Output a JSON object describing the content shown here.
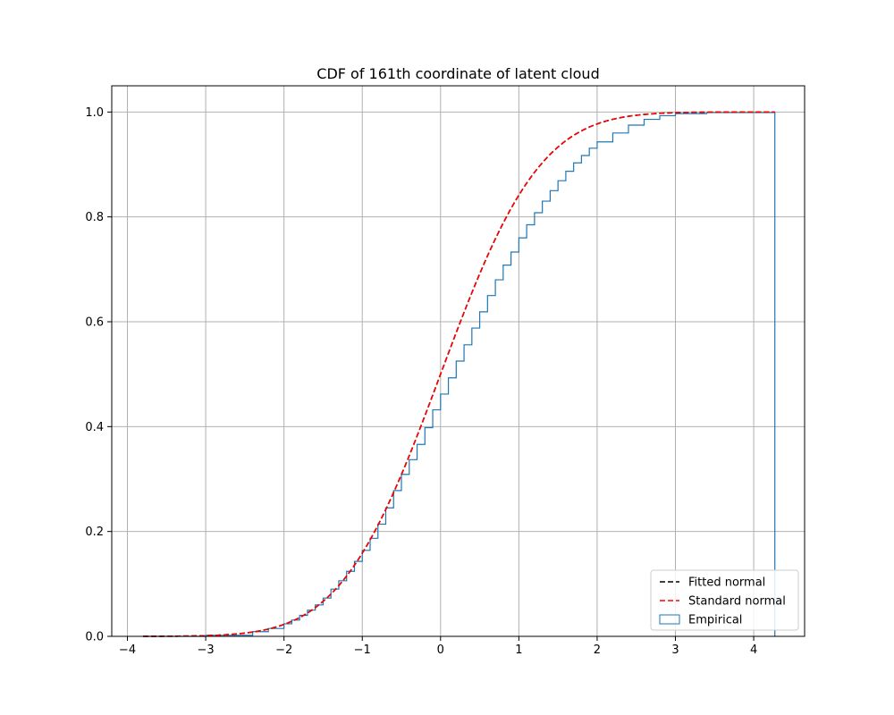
{
  "chart_data": {
    "type": "line",
    "title": "CDF of 161th coordinate of latent cloud",
    "xlabel": "",
    "ylabel": "",
    "xlim": [
      -4.2,
      4.65
    ],
    "ylim": [
      0.0,
      1.05
    ],
    "x_ticks": [
      -4,
      -3,
      -2,
      -1,
      0,
      1,
      2,
      3,
      4
    ],
    "y_ticks": [
      0.0,
      0.2,
      0.4,
      0.6,
      0.8,
      1.0
    ],
    "x_tick_labels": [
      "−4",
      "−3",
      "−2",
      "−1",
      "0",
      "1",
      "2",
      "3",
      "4"
    ],
    "y_tick_labels": [
      "0.0",
      "0.2",
      "0.4",
      "0.6",
      "0.8",
      "1.0"
    ],
    "grid": true,
    "legend_position": "lower-right",
    "series": [
      {
        "name": "Fitted normal",
        "kind": "line",
        "style": "dashed",
        "color": "#000000",
        "distribution": "normal",
        "mean": 0.0,
        "std": 1.0,
        "x_range": [
          -3.8,
          4.27
        ]
      },
      {
        "name": "Standard normal",
        "kind": "line",
        "style": "dashed",
        "color": "#ff0000",
        "distribution": "normal",
        "mean": 0.0,
        "std": 1.0,
        "x_range": [
          -3.8,
          4.27
        ]
      },
      {
        "name": "Empirical",
        "kind": "step",
        "color": "#1f77b4",
        "x": [
          -3.8,
          -3.0,
          -2.4,
          -2.2,
          -2.0,
          -1.9,
          -1.8,
          -1.7,
          -1.6,
          -1.5,
          -1.4,
          -1.3,
          -1.2,
          -1.1,
          -1.0,
          -0.9,
          -0.8,
          -0.7,
          -0.6,
          -0.5,
          -0.4,
          -0.3,
          -0.2,
          -0.1,
          0.0,
          0.1,
          0.2,
          0.3,
          0.4,
          0.5,
          0.6,
          0.7,
          0.8,
          0.9,
          1.0,
          1.1,
          1.2,
          1.3,
          1.4,
          1.5,
          1.6,
          1.7,
          1.8,
          1.9,
          2.0,
          2.2,
          2.4,
          2.6,
          2.8,
          3.0,
          3.4,
          4.27
        ],
        "y": [
          0.0,
          0.002,
          0.009,
          0.015,
          0.024,
          0.031,
          0.04,
          0.05,
          0.06,
          0.073,
          0.09,
          0.106,
          0.124,
          0.143,
          0.164,
          0.187,
          0.214,
          0.245,
          0.278,
          0.309,
          0.337,
          0.366,
          0.398,
          0.432,
          0.462,
          0.493,
          0.525,
          0.556,
          0.588,
          0.619,
          0.65,
          0.68,
          0.708,
          0.733,
          0.76,
          0.785,
          0.808,
          0.83,
          0.85,
          0.869,
          0.887,
          0.903,
          0.917,
          0.931,
          0.943,
          0.96,
          0.975,
          0.986,
          0.993,
          0.997,
          0.999,
          1.0
        ]
      }
    ]
  }
}
